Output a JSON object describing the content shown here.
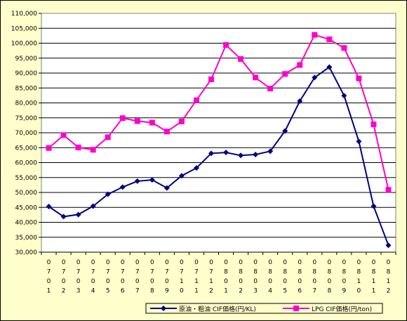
{
  "chart_data": {
    "type": "line",
    "categories": [
      [
        "0",
        "7",
        "0",
        "1"
      ],
      [
        "0",
        "7",
        "0",
        "2"
      ],
      [
        "0",
        "7",
        "0",
        "3"
      ],
      [
        "0",
        "7",
        "0",
        "4"
      ],
      [
        "0",
        "7",
        "0",
        "5"
      ],
      [
        "0",
        "7",
        "0",
        "6"
      ],
      [
        "0",
        "7",
        "0",
        "7"
      ],
      [
        "0",
        "7",
        "0",
        "8"
      ],
      [
        "0",
        "7",
        "0",
        "9"
      ],
      [
        "0",
        "7",
        "1",
        "0"
      ],
      [
        "0",
        "7",
        "1",
        "1"
      ],
      [
        "0",
        "7",
        "1",
        "2"
      ],
      [
        "0",
        "8",
        "0",
        "1"
      ],
      [
        "0",
        "8",
        "0",
        "2"
      ],
      [
        "0",
        "8",
        "0",
        "3"
      ],
      [
        "0",
        "8",
        "0",
        "4"
      ],
      [
        "0",
        "8",
        "0",
        "5"
      ],
      [
        "0",
        "8",
        "0",
        "6"
      ],
      [
        "0",
        "8",
        "0",
        "7"
      ],
      [
        "0",
        "8",
        "0",
        "8"
      ],
      [
        "0",
        "8",
        "0",
        "9"
      ],
      [
        "0",
        "8",
        "1",
        "0"
      ],
      [
        "0",
        "8",
        "1",
        "1"
      ],
      [
        "0",
        "8",
        "1",
        "2"
      ]
    ],
    "series": [
      {
        "name": "原油・粗油 CIF価格(円/KL)",
        "color": "#000080",
        "marker": "diamond",
        "values": [
          45300,
          41900,
          42600,
          45400,
          49400,
          51800,
          53800,
          54200,
          51500,
          55600,
          58200,
          63100,
          63400,
          62400,
          62700,
          63800,
          70600,
          80600,
          88500,
          92000,
          82400,
          67100,
          45400,
          32300
        ]
      },
      {
        "name": "LPG CIF価格(円/ton)",
        "color": "#ff00cc",
        "marker": "square",
        "values": [
          64900,
          69200,
          65100,
          64300,
          68500,
          74900,
          73900,
          73400,
          70400,
          73800,
          80900,
          87900,
          99400,
          94700,
          88500,
          84800,
          89700,
          92700,
          102800,
          101300,
          98400,
          88200,
          72800,
          50900
        ]
      }
    ],
    "yticks": [
      "110,000",
      "105,000",
      "100,000",
      "95,000",
      "90,000",
      "85,000",
      "80,000",
      "75,000",
      "70,000",
      "65,000",
      "60,000",
      "55,000",
      "50,000",
      "45,000",
      "40,000",
      "35,000",
      "30,000"
    ],
    "ylim": [
      30000,
      110000
    ],
    "grid": true,
    "legend_position": "bottom"
  }
}
